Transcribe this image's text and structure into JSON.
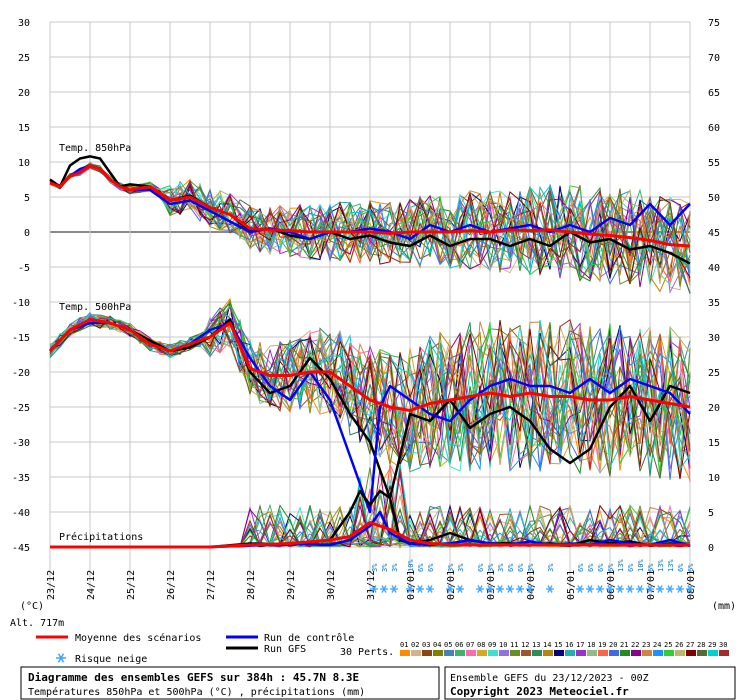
{
  "chart_data": {
    "type": "line",
    "title": "Diagramme des ensembles GEFS sur 384h : 45.7N 8.3E",
    "subtitle": "Températures 850hPa et 500hPa (°C) , précipitations (mm)",
    "run_info": "Ensemble GEFS du 23/12/2023 - 00Z",
    "copyright": "Copyright 2023 Meteociel.fr",
    "altitude": "Alt. 717m",
    "left_unit": "(°C)",
    "right_unit": "(mm)",
    "y_left_ticks": [
      30,
      25,
      20,
      15,
      10,
      5,
      0,
      -5,
      -10,
      -15,
      -20,
      -25,
      -30,
      -35,
      -40,
      -45
    ],
    "y_right_ticks": [
      75,
      70,
      65,
      60,
      55,
      50,
      45,
      40,
      35,
      30,
      25,
      20,
      15,
      10,
      5,
      0
    ],
    "ylim_left": [
      -45,
      30
    ],
    "ylim_right": [
      0,
      75
    ],
    "x_labels": [
      "23/12",
      "24/12",
      "25/12",
      "26/12",
      "27/12",
      "28/12",
      "29/12",
      "30/12",
      "31/12",
      "01/01",
      "02/01",
      "03/01",
      "04/01",
      "05/01",
      "06/01",
      "07/01",
      "08/01"
    ],
    "section_labels": {
      "t850": "Temp. 850hPa",
      "t500": "Temp. 500hPa",
      "precip": "Précipitations"
    },
    "legend": {
      "mean": "Moyenne des scénarios",
      "control": "Run de contrôle",
      "gfs": "Run GFS",
      "snow": "Risque neige",
      "perts": "30 Perts."
    },
    "colors": {
      "mean": "#ff0000",
      "control": "#0000ff",
      "gfs": "#000000",
      "snow": "#3da5ff",
      "grid": "#c8c8c8"
    },
    "perturbations": {
      "numbers": [
        "01",
        "02",
        "03",
        "04",
        "05",
        "06",
        "07",
        "08",
        "09",
        "10",
        "11",
        "12",
        "13",
        "14",
        "15",
        "16",
        "17",
        "18",
        "19",
        "20",
        "21",
        "22",
        "23",
        "24",
        "25",
        "26",
        "27",
        "28",
        "29",
        "30"
      ],
      "colors": [
        "#ff8c00",
        "#d2b48c",
        "#8b4513",
        "#808000",
        "#4682b4",
        "#3cb371",
        "#ff69b4",
        "#daa520",
        "#40e0d0",
        "#9370db",
        "#6b8e23",
        "#a0522d",
        "#2e8b57",
        "#b8860b",
        "#000080",
        "#20b2aa",
        "#9932cc",
        "#8fbc8f",
        "#ff6347",
        "#4169e1",
        "#228b22",
        "#8b008b",
        "#cd853f",
        "#1e90ff",
        "#32cd32",
        "#bdb76b",
        "#800000",
        "#556b2f",
        "#00ced1",
        "#a52a2a"
      ]
    },
    "snow_risk": [
      {
        "day": 8.1,
        "pct": "3%"
      },
      {
        "day": 8.35,
        "pct": "3%"
      },
      {
        "day": 8.6,
        "pct": "3%"
      },
      {
        "day": 9.0,
        "pct": "10%"
      },
      {
        "day": 9.25,
        "pct": "6%"
      },
      {
        "day": 9.5,
        "pct": "6%"
      },
      {
        "day": 10.0,
        "pct": "3%"
      },
      {
        "day": 10.25,
        "pct": "3%"
      },
      {
        "day": 10.75,
        "pct": "6%"
      },
      {
        "day": 11.0,
        "pct": "3%"
      },
      {
        "day": 11.25,
        "pct": "3%"
      },
      {
        "day": 11.5,
        "pct": "6%"
      },
      {
        "day": 11.75,
        "pct": "6%"
      },
      {
        "day": 12.0,
        "pct": "3%"
      },
      {
        "day": 12.5,
        "pct": "3%"
      },
      {
        "day": 13.25,
        "pct": "6%"
      },
      {
        "day": 13.5,
        "pct": "6%"
      },
      {
        "day": 13.75,
        "pct": "6%"
      },
      {
        "day": 14.0,
        "pct": "6%"
      },
      {
        "day": 14.25,
        "pct": "13%"
      },
      {
        "day": 14.5,
        "pct": "6%"
      },
      {
        "day": 14.75,
        "pct": "10%"
      },
      {
        "day": 15.0,
        "pct": "6%"
      },
      {
        "day": 15.25,
        "pct": "13%"
      },
      {
        "day": 15.5,
        "pct": "13%"
      },
      {
        "day": 15.75,
        "pct": "6%"
      },
      {
        "day": 16.0,
        "pct": "6%"
      }
    ],
    "series": [
      {
        "key": "t850_gfs",
        "x": [
          0,
          0.25,
          0.5,
          0.75,
          1,
          1.25,
          1.5,
          1.75,
          2,
          2.5,
          3,
          3.5,
          4,
          4.5,
          5,
          5.5,
          6,
          6.5,
          7,
          7.5,
          8,
          8.5,
          9,
          9.5,
          10,
          10.5,
          11,
          11.5,
          12,
          12.5,
          13,
          13.5,
          14,
          14.5,
          15,
          15.5,
          16
        ],
        "values": [
          7.5,
          6.5,
          9.5,
          10.5,
          10.8,
          10.5,
          8.5,
          6.5,
          6.8,
          6.5,
          4.5,
          5.2,
          3.5,
          2.5,
          0.2,
          0.5,
          -0.5,
          -1,
          0,
          -1,
          -0.5,
          -1.5,
          -2,
          -0.5,
          -2,
          -1,
          -1,
          -2,
          -1,
          -2,
          0,
          -1.5,
          -1,
          -2.5,
          -2,
          -3,
          -4.5
        ]
      },
      {
        "key": "t850_control",
        "x": [
          0,
          0.25,
          0.5,
          0.75,
          1,
          1.25,
          1.5,
          1.75,
          2,
          2.5,
          3,
          3.5,
          4,
          4.5,
          5,
          5.5,
          6,
          6.5,
          7,
          7.5,
          8,
          8.5,
          9,
          9.5,
          10,
          10.5,
          11,
          11.5,
          12,
          12.5,
          13,
          13.5,
          14,
          14.5,
          15,
          15.5,
          16
        ],
        "values": [
          7,
          6.5,
          8,
          9,
          9.5,
          9,
          7.5,
          6.5,
          6,
          6,
          4,
          4.5,
          3,
          1.5,
          0,
          0.5,
          0,
          -1,
          0,
          0,
          0.5,
          0,
          -1,
          1,
          0,
          1,
          0,
          0.5,
          1,
          0,
          1,
          0,
          2,
          1,
          4,
          1,
          4
        ]
      },
      {
        "key": "t850_mean",
        "x": [
          0,
          0.25,
          0.5,
          0.75,
          1,
          1.25,
          1.5,
          1.75,
          2,
          2.5,
          3,
          3.5,
          4,
          4.5,
          5,
          5.5,
          6,
          6.5,
          7,
          7.5,
          8,
          8.5,
          9,
          9.5,
          10,
          10.5,
          11,
          11.5,
          12,
          12.5,
          13,
          13.5,
          14,
          14.5,
          15,
          15.5,
          16
        ],
        "values": [
          7,
          6.5,
          8,
          8.5,
          9.5,
          9,
          7.5,
          6.5,
          6,
          6.5,
          4.5,
          5,
          3.5,
          2.5,
          0.5,
          0.3,
          0.2,
          0,
          0,
          0,
          0,
          -0.2,
          0,
          0,
          0,
          0.2,
          0,
          0.3,
          0.2,
          0.3,
          0,
          -0.3,
          -0.5,
          -0.8,
          -1.2,
          -1.8,
          -2
        ]
      },
      {
        "key": "t500_gfs",
        "x": [
          0,
          0.5,
          1,
          1.5,
          2,
          2.5,
          3,
          3.5,
          4,
          4.5,
          5,
          5.5,
          6,
          6.5,
          7,
          7.5,
          8,
          8.25,
          8.5,
          9,
          9.5,
          10,
          10.5,
          11,
          11.5,
          12,
          12.5,
          13,
          13.5,
          14,
          14.5,
          15,
          15.5,
          16
        ],
        "values": [
          -17,
          -14,
          -12.5,
          -13,
          -14,
          -15.5,
          -17,
          -16.5,
          -15,
          -12.5,
          -20,
          -23,
          -22,
          -18,
          -21,
          -26,
          -30,
          -34,
          -38,
          -26,
          -27,
          -24,
          -28,
          -26,
          -25,
          -27,
          -31,
          -33,
          -31,
          -25,
          -22,
          -27,
          -22,
          -23
        ]
      },
      {
        "key": "t500_control",
        "x": [
          0,
          0.5,
          1,
          1.5,
          2,
          2.5,
          3,
          3.5,
          4,
          4.5,
          5,
          5.5,
          6,
          6.5,
          7,
          7.5,
          8,
          8.25,
          8.5,
          9,
          9.5,
          10,
          10.5,
          11,
          11.5,
          12,
          12.5,
          13,
          13.5,
          14,
          14.5,
          15,
          15.5,
          16
        ],
        "values": [
          -17,
          -14,
          -13,
          -13,
          -14,
          -16,
          -17,
          -16,
          -14,
          -13,
          -18,
          -22,
          -24,
          -20,
          -24,
          -32,
          -40,
          -25,
          -22,
          -24,
          -26,
          -27,
          -24,
          -22,
          -21,
          -22,
          -22,
          -23,
          -21,
          -23,
          -21,
          -22,
          -23,
          -26
        ]
      },
      {
        "key": "t500_mean",
        "x": [
          0,
          0.5,
          1,
          1.5,
          2,
          2.5,
          3,
          3.5,
          4,
          4.5,
          5,
          5.5,
          6,
          6.5,
          7,
          7.5,
          8,
          8.5,
          9,
          9.5,
          10,
          10.5,
          11,
          11.5,
          12,
          12.5,
          13,
          13.5,
          14,
          14.5,
          15,
          15.5,
          16
        ],
        "values": [
          -17,
          -14,
          -12.5,
          -13,
          -14,
          -16,
          -17,
          -16,
          -15,
          -13,
          -19.5,
          -20.5,
          -20.5,
          -20,
          -20,
          -22,
          -24,
          -25,
          -25.5,
          -24.5,
          -24,
          -23.5,
          -23,
          -23.5,
          -23,
          -23.5,
          -23.5,
          -24,
          -24,
          -23.5,
          -24,
          -24.5,
          -25
        ]
      },
      {
        "key": "precip_gfs",
        "x": [
          0,
          4,
          5,
          6,
          7,
          7.5,
          7.75,
          8,
          8.25,
          8.5,
          8.75,
          9,
          9.5,
          10,
          10.5,
          11,
          11.5,
          12,
          12.5,
          13,
          13.5,
          14,
          14.5,
          15,
          15.5,
          16
        ],
        "values": [
          0,
          0,
          0.5,
          0.3,
          1,
          5,
          8,
          6,
          8,
          7,
          1,
          0.5,
          1,
          2,
          1,
          0.5,
          0.5,
          0.3,
          0.5,
          0.2,
          1,
          0.5,
          0.8,
          0.2,
          0.5,
          0.2
        ]
      },
      {
        "key": "precip_control",
        "x": [
          0,
          4,
          5,
          6,
          7,
          7.5,
          8,
          8.25,
          8.5,
          9,
          9.5,
          10,
          10.5,
          11,
          11.5,
          12,
          12.5,
          13,
          13.5,
          14,
          14.5,
          15,
          15.5,
          16
        ],
        "values": [
          0,
          0,
          0.2,
          0.5,
          0.3,
          1,
          3,
          5,
          2,
          0.5,
          0.3,
          0.5,
          1,
          0.5,
          0.3,
          0.8,
          0.3,
          0.5,
          0.3,
          1,
          0.5,
          0.3,
          1,
          0.2
        ]
      },
      {
        "key": "precip_mean",
        "x": [
          0,
          4,
          5,
          6,
          7,
          7.5,
          8,
          8.5,
          9,
          9.5,
          10,
          11,
          12,
          13,
          14,
          15,
          16
        ],
        "values": [
          0,
          0,
          0.3,
          0.5,
          1,
          1.5,
          3.5,
          2.5,
          1,
          0.5,
          0.3,
          0.3,
          0.3,
          0.3,
          0.3,
          0.3,
          0.3
        ]
      }
    ]
  }
}
